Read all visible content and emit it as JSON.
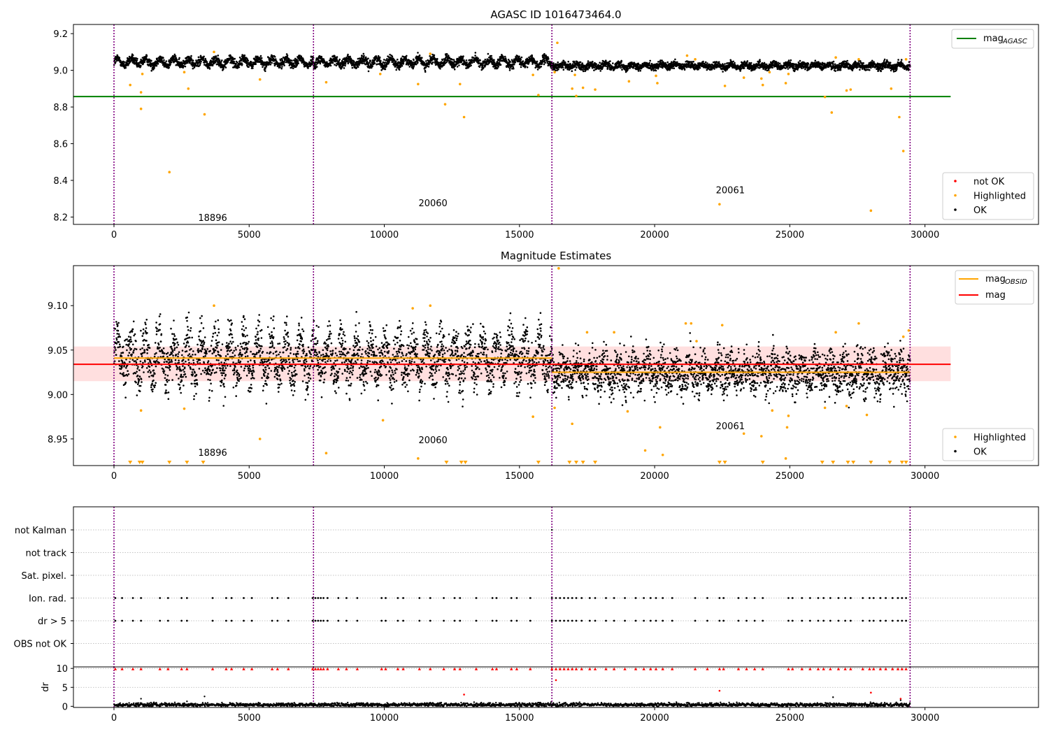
{
  "chart_data": [
    {
      "id": "mag_agasc",
      "type": "scatter",
      "title": "AGASC ID 1016473464.0",
      "xlim": [
        -1500,
        34200
      ],
      "ylim": [
        8.16,
        9.25
      ],
      "xticks": [
        "0",
        "5000",
        "10000",
        "15000",
        "20000",
        "25000",
        "30000"
      ],
      "yticks": [
        "8.2",
        "8.4",
        "8.6",
        "8.8",
        "9.0",
        "9.2"
      ],
      "obs_boundaries": [
        0,
        7380,
        16200,
        29450
      ],
      "obs_labels": [
        {
          "text": "18896",
          "x": 3650,
          "y": 8.18
        },
        {
          "text": "20060",
          "x": 11800,
          "y": 8.26
        },
        {
          "text": "20061",
          "x": 22800,
          "y": 8.33
        }
      ],
      "segments": [
        {
          "x0": 0,
          "x1": 7380,
          "mean": 9.045,
          "amp": 0.018,
          "scatter": 0.012
        },
        {
          "x0": 7380,
          "x1": 16200,
          "mean": 9.045,
          "amp": 0.018,
          "scatter": 0.012
        },
        {
          "x0": 16200,
          "x1": 29450,
          "mean": 9.025,
          "amp": 0.008,
          "scatter": 0.01
        }
      ],
      "lines": [
        {
          "name": "mag",
          "sub": "AGASC",
          "color": "#008000",
          "y": 8.857,
          "x0": -1500,
          "x1": 30950
        }
      ],
      "highlighted": [
        [
          600,
          8.92
        ],
        [
          1000,
          8.88
        ],
        [
          1000,
          8.79
        ],
        [
          1050,
          8.98
        ],
        [
          2050,
          8.445
        ],
        [
          2600,
          8.99
        ],
        [
          2750,
          8.9
        ],
        [
          3350,
          8.76
        ],
        [
          3700,
          9.1
        ],
        [
          5400,
          8.95
        ],
        [
          7850,
          8.935
        ],
        [
          9850,
          8.98
        ],
        [
          11250,
          8.925
        ],
        [
          11700,
          9.09
        ],
        [
          12250,
          8.815
        ],
        [
          12800,
          8.925
        ],
        [
          12950,
          8.745
        ],
        [
          15500,
          8.975
        ],
        [
          15700,
          8.865
        ],
        [
          16400,
          9.15
        ],
        [
          16300,
          8.99
        ],
        [
          16950,
          8.9
        ],
        [
          17050,
          8.975
        ],
        [
          17100,
          8.86
        ],
        [
          17350,
          8.905
        ],
        [
          17800,
          8.895
        ],
        [
          19050,
          8.94
        ],
        [
          20050,
          8.97
        ],
        [
          20100,
          8.93
        ],
        [
          21200,
          9.08
        ],
        [
          21500,
          9.06
        ],
        [
          22400,
          8.27
        ],
        [
          22600,
          8.915
        ],
        [
          23300,
          8.96
        ],
        [
          23950,
          8.955
        ],
        [
          24000,
          8.92
        ],
        [
          24250,
          8.99
        ],
        [
          24850,
          8.93
        ],
        [
          24950,
          8.98
        ],
        [
          26300,
          8.855
        ],
        [
          26550,
          8.77
        ],
        [
          26700,
          9.07
        ],
        [
          27100,
          8.89
        ],
        [
          27250,
          8.895
        ],
        [
          27550,
          9.06
        ],
        [
          28000,
          8.235
        ],
        [
          28750,
          8.9
        ],
        [
          29050,
          8.745
        ],
        [
          29200,
          8.56
        ],
        [
          29300,
          9.06
        ]
      ],
      "legend": [
        {
          "label": "not OK",
          "color": "#ff0000"
        },
        {
          "label": "Highlighted",
          "color": "#ffa500"
        },
        {
          "label": "OK",
          "color": "#000000"
        }
      ]
    },
    {
      "id": "mag_estimates",
      "type": "scatter",
      "title": "Magnitude Estimates",
      "xlim": [
        -1500,
        34200
      ],
      "ylim": [
        8.92,
        9.145
      ],
      "xticks": [
        "0",
        "5000",
        "10000",
        "15000",
        "20000",
        "25000",
        "30000"
      ],
      "yticks": [
        "8.95",
        "9.00",
        "9.05",
        "9.10"
      ],
      "obs_boundaries": [
        0,
        7380,
        16200,
        29450
      ],
      "obs_labels": [
        {
          "text": "18896",
          "x": 3650,
          "y": 8.931
        },
        {
          "text": "20060",
          "x": 11800,
          "y": 8.945
        },
        {
          "text": "20061",
          "x": 22800,
          "y": 8.961
        }
      ],
      "segments": [
        {
          "x0": 0,
          "x1": 16200,
          "mean": 9.041,
          "amp": 0.018,
          "scatter": 0.014
        },
        {
          "x0": 16200,
          "x1": 29450,
          "mean": 9.025,
          "amp": 0.008,
          "scatter": 0.012
        }
      ],
      "band": {
        "y0": 9.015,
        "y1": 9.054,
        "x0": -1500,
        "x1": 30950,
        "color": "#ffc0c0"
      },
      "lines": [
        {
          "name": "mag",
          "sub": "OBSID",
          "color": "#ffa500",
          "y": 9.041,
          "x0": 0,
          "x1": 16200
        },
        {
          "name": "",
          "sub": "",
          "color": "#ffa500",
          "y": 9.025,
          "x0": 16200,
          "x1": 29450
        },
        {
          "name": "mag",
          "sub": "",
          "color": "#ff0000",
          "y": 9.034,
          "x0": -1500,
          "x1": 30950
        }
      ],
      "highlighted": [
        [
          3700,
          9.1
        ],
        [
          1000,
          8.982
        ],
        [
          2600,
          8.984
        ],
        [
          5400,
          8.95
        ],
        [
          7850,
          8.934
        ],
        [
          9950,
          8.971
        ],
        [
          11250,
          8.928
        ],
        [
          11700,
          9.1
        ],
        [
          11050,
          9.097
        ],
        [
          15500,
          8.975
        ],
        [
          16300,
          8.985
        ],
        [
          16450,
          9.142
        ],
        [
          16950,
          8.967
        ],
        [
          17500,
          9.07
        ],
        [
          18500,
          9.07
        ],
        [
          19000,
          8.981
        ],
        [
          19650,
          8.937
        ],
        [
          20200,
          8.963
        ],
        [
          20300,
          8.932
        ],
        [
          21150,
          9.08
        ],
        [
          21350,
          9.08
        ],
        [
          21550,
          9.06
        ],
        [
          22500,
          9.078
        ],
        [
          23300,
          8.956
        ],
        [
          23950,
          8.953
        ],
        [
          24350,
          8.982
        ],
        [
          24900,
          8.963
        ],
        [
          24950,
          8.976
        ],
        [
          24850,
          8.928
        ],
        [
          26300,
          8.985
        ],
        [
          26700,
          9.07
        ],
        [
          27100,
          8.987
        ],
        [
          27550,
          9.08
        ],
        [
          27850,
          8.977
        ],
        [
          29200,
          9.065
        ],
        [
          29400,
          9.072
        ]
      ],
      "markers_below": [
        600,
        950,
        1050,
        2050,
        2700,
        3300,
        12300,
        12850,
        13000,
        15700,
        16850,
        17100,
        17350,
        17800,
        22400,
        22600,
        24000,
        26200,
        26600,
        27150,
        27350,
        28000,
        28700,
        29150,
        29300
      ],
      "legend": [
        {
          "label": "Highlighted",
          "color": "#ffa500"
        },
        {
          "label": "OK",
          "color": "#000000"
        }
      ]
    },
    {
      "id": "flags",
      "type": "scatter",
      "title": "",
      "xlim": [
        -1500,
        34200
      ],
      "categories": [
        "not Kalman",
        "not track",
        "Sat. pixel.",
        "Ion. rad.",
        "dr > 5",
        "OBS not OK"
      ],
      "obs_boundaries": [
        0,
        7380,
        16200,
        29450
      ],
      "flag_points": [
        50,
        300,
        700,
        1000,
        1700,
        2000,
        2500,
        2700,
        3650,
        4150,
        4350,
        4800,
        5100,
        5850,
        6050,
        6450,
        7350,
        7450,
        7550,
        7650,
        7750,
        7900,
        8300,
        8600,
        9000,
        9900,
        10050,
        10500,
        10700,
        11300,
        11700,
        12200,
        12600,
        12800,
        13400,
        14000,
        14150,
        14700,
        14900,
        15400,
        16200,
        16350,
        16500,
        16650,
        16800,
        16950,
        17100,
        17300,
        17600,
        17800,
        18200,
        18500,
        18900,
        19300,
        19600,
        19850,
        20050,
        20300,
        20650,
        21500,
        21950,
        22400,
        22550,
        23100,
        23400,
        23700,
        24000,
        24950,
        25100,
        25450,
        25750,
        26050,
        26250,
        26500,
        26800,
        27050,
        27250,
        27700,
        27950,
        28100,
        28350,
        28550,
        28800,
        29000,
        29150,
        29300
      ]
    },
    {
      "id": "dr",
      "type": "scatter",
      "title": "",
      "xlim": [
        -1500,
        34200
      ],
      "ylim": [
        -0.3,
        10.4
      ],
      "ylabel": "dr",
      "xticks": [
        "0",
        "5000",
        "10000",
        "15000",
        "20000",
        "25000",
        "30000"
      ],
      "yticks": [
        "0",
        "5",
        "10"
      ],
      "obs_boundaries": [
        0,
        7380,
        16200,
        29450
      ],
      "dr_outliers_red": [
        [
          12950,
          3.1
        ],
        [
          16350,
          6.9
        ],
        [
          22400,
          4.1
        ],
        [
          28000,
          3.6
        ],
        [
          29100,
          2.0
        ]
      ],
      "dr_outliers_black": [
        [
          1000,
          2.0
        ],
        [
          3350,
          2.6
        ],
        [
          2700,
          1.3
        ],
        [
          26600,
          2.4
        ],
        [
          29100,
          1.6
        ]
      ]
    }
  ]
}
